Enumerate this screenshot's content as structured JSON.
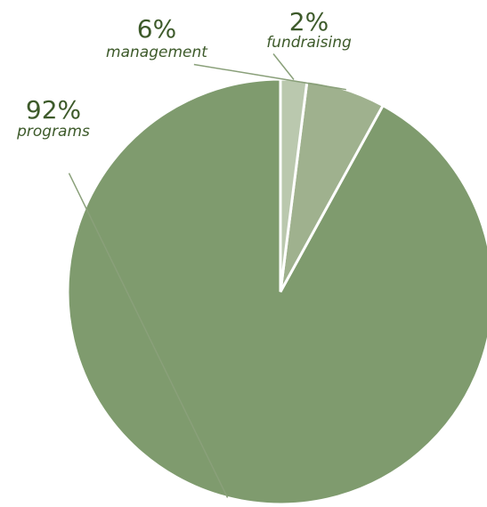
{
  "chart_data": {
    "type": "pie",
    "categories": [
      "programs",
      "management",
      "fundraising"
    ],
    "values": [
      92,
      6,
      2
    ],
    "percent_labels": [
      "92%",
      "6%",
      "2%"
    ],
    "colors": [
      "#7f9b6e",
      "#9fb18e",
      "#bac8ae"
    ],
    "label_color": "#3d5a2a",
    "start": "12 o'clock",
    "direction": "counter-clockwise",
    "legend": "none"
  }
}
